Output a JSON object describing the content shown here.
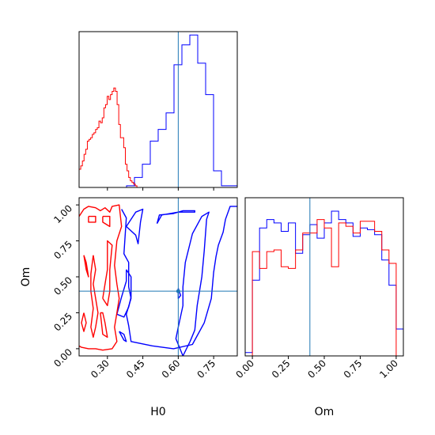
{
  "chart_data": {
    "type": "corner",
    "parameters": [
      "H0",
      "Om"
    ],
    "xlabel": "H0",
    "ylabel": "Om",
    "om_xlabel": "Om",
    "truths": {
      "H0": 0.6,
      "Om": 0.4
    },
    "h0_range": [
      0.18,
      0.85
    ],
    "om_range": [
      -0.05,
      1.05
    ],
    "h0_ticks": [
      "0.30",
      "0.45",
      "0.60",
      "0.75"
    ],
    "om_ticks": [
      "0.00",
      "0.25",
      "0.50",
      "0.75",
      "1.00"
    ],
    "colors": {
      "blue": "#0000ff",
      "red": "#ff0000",
      "truth": "#1f77b4"
    },
    "series": [
      {
        "color": "blue",
        "h0_hist": {
          "edges": [
            0.18,
            0.2135,
            0.247,
            0.2805,
            0.314,
            0.3475,
            0.381,
            0.4145,
            0.448,
            0.4815,
            0.515,
            0.5485,
            0.582,
            0.6155,
            0.649,
            0.6825,
            0.716,
            0.7495,
            0.783,
            0.8165,
            0.85
          ],
          "counts": [
            0,
            0,
            0,
            0,
            0,
            0,
            0.01,
            0.06,
            0.14,
            0.28,
            0.35,
            0.45,
            0.74,
            0.86,
            0.92,
            0.75,
            0.56,
            0.1,
            0.01,
            0.01
          ]
        },
        "om_hist": {
          "edges": [
            -0.05,
            0.0,
            0.05,
            0.1,
            0.15,
            0.2,
            0.25,
            0.3,
            0.35,
            0.4,
            0.45,
            0.5,
            0.55,
            0.6,
            0.65,
            0.7,
            0.75,
            0.8,
            0.85,
            0.9,
            0.95,
            1.0,
            1.05
          ],
          "counts": [
            0.02,
            0.45,
            0.76,
            0.81,
            0.79,
            0.74,
            0.79,
            0.61,
            0.72,
            0.78,
            0.7,
            0.79,
            0.86,
            0.81,
            0.79,
            0.71,
            0.76,
            0.75,
            0.72,
            0.57,
            0.42,
            0.16
          ]
        },
        "contours": [
          [
            [
              0.51,
              0.87
            ],
            [
              0.52,
              0.93
            ],
            [
              0.58,
              0.94
            ],
            [
              0.62,
              0.96
            ],
            [
              0.67,
              0.96
            ],
            [
              0.67,
              0.95
            ],
            [
              0.6,
              0.95
            ],
            [
              0.53,
              0.93
            ],
            [
              0.51,
              0.87
            ]
          ],
          [
            [
              0.36,
              0.97
            ],
            [
              0.38,
              0.91
            ],
            [
              0.37,
              0.66
            ],
            [
              0.39,
              0.6
            ],
            [
              0.39,
              0.43
            ],
            [
              0.4,
              0.35
            ],
            [
              0.38,
              0.24
            ],
            [
              0.39,
              0.16
            ],
            [
              0.4,
              0.05
            ],
            [
              0.49,
              0.02
            ],
            [
              0.58,
              0.0
            ],
            [
              0.66,
              0.03
            ],
            [
              0.68,
              0.09
            ],
            [
              0.71,
              0.18
            ],
            [
              0.74,
              0.35
            ],
            [
              0.75,
              0.53
            ],
            [
              0.76,
              0.64
            ],
            [
              0.77,
              0.72
            ],
            [
              0.79,
              0.81
            ],
            [
              0.8,
              0.9
            ],
            [
              0.82,
              0.99
            ],
            [
              0.85,
              0.99
            ]
          ],
          [
            [
              0.38,
              0.85
            ],
            [
              0.42,
              0.79
            ],
            [
              0.43,
              0.73
            ],
            [
              0.44,
              0.88
            ],
            [
              0.45,
              0.97
            ],
            [
              0.42,
              0.95
            ],
            [
              0.38,
              0.85
            ]
          ],
          [
            [
              0.38,
              0.55
            ],
            [
              0.4,
              0.5
            ],
            [
              0.4,
              0.36
            ],
            [
              0.39,
              0.29
            ],
            [
              0.37,
              0.22
            ],
            [
              0.34,
              0.24
            ],
            [
              0.36,
              0.36
            ],
            [
              0.38,
              0.47
            ],
            [
              0.38,
              0.55
            ]
          ],
          [
            [
              0.35,
              0.12
            ],
            [
              0.37,
              0.06
            ],
            [
              0.38,
              0.05
            ],
            [
              0.37,
              0.1
            ],
            [
              0.35,
              0.12
            ]
          ],
          [
            [
              0.6,
              0.42
            ],
            [
              0.61,
              0.37
            ],
            [
              0.6,
              0.35
            ],
            [
              0.6,
              0.42
            ]
          ],
          [
            [
              0.62,
              -0.05
            ],
            [
              0.65,
              0.05
            ],
            [
              0.67,
              0.13
            ],
            [
              0.68,
              0.3
            ],
            [
              0.7,
              0.5
            ],
            [
              0.71,
              0.68
            ],
            [
              0.72,
              0.9
            ],
            [
              0.73,
              0.95
            ],
            [
              0.7,
              0.92
            ],
            [
              0.66,
              0.8
            ],
            [
              0.63,
              0.6
            ],
            [
              0.62,
              0.43
            ],
            [
              0.62,
              0.3
            ],
            [
              0.6,
              0.15
            ],
            [
              0.59,
              0.07
            ],
            [
              0.62,
              -0.05
            ]
          ]
        ]
      },
      {
        "color": "red",
        "h0_hist": {
          "edges": [
            0.18,
            0.187,
            0.194,
            0.201,
            0.208,
            0.215,
            0.222,
            0.229,
            0.236,
            0.243,
            0.25,
            0.257,
            0.264,
            0.271,
            0.278,
            0.285,
            0.292,
            0.299,
            0.306,
            0.313,
            0.32,
            0.327,
            0.334,
            0.341,
            0.348,
            0.355,
            0.362,
            0.369,
            0.376,
            0.383,
            0.39,
            0.397,
            0.404,
            0.411,
            0.418,
            0.425,
            0.432
          ],
          "counts": [
            0.11,
            0.13,
            0.16,
            0.2,
            0.23,
            0.28,
            0.29,
            0.3,
            0.32,
            0.33,
            0.35,
            0.36,
            0.4,
            0.39,
            0.42,
            0.48,
            0.5,
            0.55,
            0.53,
            0.56,
            0.58,
            0.6,
            0.58,
            0.5,
            0.38,
            0.3,
            0.3,
            0.24,
            0.14,
            0.1,
            0.06,
            0.04,
            0.03,
            0.02,
            0.01,
            0.0
          ]
        },
        "om_hist": {
          "edges": [
            -0.05,
            0.0,
            0.05,
            0.1,
            0.15,
            0.2,
            0.25,
            0.3,
            0.35,
            0.4,
            0.45,
            0.5,
            0.55,
            0.6,
            0.65,
            0.7,
            0.75,
            0.8,
            0.85,
            0.9,
            0.95,
            1.0,
            1.05
          ],
          "counts": [
            0,
            0.62,
            0.52,
            0.62,
            0.63,
            0.53,
            0.52,
            0.63,
            0.73,
            0.73,
            0.81,
            0.76,
            0.53,
            0.79,
            0.77,
            0.73,
            0.8,
            0.8,
            0.74,
            0.63,
            0.55,
            0
          ]
        },
        "contours": [
          [
            [
              0.18,
              0.92
            ],
            [
              0.2,
              0.97
            ],
            [
              0.22,
              0.99
            ],
            [
              0.25,
              0.98
            ],
            [
              0.27,
              0.96
            ],
            [
              0.29,
              0.98
            ],
            [
              0.31,
              0.95
            ],
            [
              0.32,
              0.99
            ],
            [
              0.35,
              1.0
            ],
            [
              0.36,
              0.85
            ],
            [
              0.34,
              0.75
            ],
            [
              0.33,
              0.58
            ],
            [
              0.34,
              0.45
            ],
            [
              0.35,
              0.35
            ],
            [
              0.34,
              0.25
            ],
            [
              0.33,
              0.15
            ],
            [
              0.34,
              0.05
            ],
            [
              0.32,
              0.0
            ],
            [
              0.28,
              -0.01
            ],
            [
              0.25,
              0.0
            ],
            [
              0.22,
              0.0
            ],
            [
              0.19,
              0.01
            ],
            [
              0.18,
              0.02
            ]
          ],
          [
            [
              0.28,
              0.92
            ],
            [
              0.31,
              0.92
            ],
            [
              0.31,
              0.85
            ],
            [
              0.28,
              0.88
            ],
            [
              0.28,
              0.92
            ]
          ],
          [
            [
              0.22,
              0.92
            ],
            [
              0.25,
              0.92
            ],
            [
              0.25,
              0.88
            ],
            [
              0.22,
              0.88
            ],
            [
              0.22,
              0.92
            ]
          ],
          [
            [
              0.28,
              0.35
            ],
            [
              0.29,
              0.45
            ],
            [
              0.3,
              0.55
            ],
            [
              0.3,
              0.75
            ],
            [
              0.32,
              0.72
            ],
            [
              0.31,
              0.55
            ],
            [
              0.31,
              0.4
            ],
            [
              0.3,
              0.3
            ],
            [
              0.28,
              0.35
            ]
          ],
          [
            [
              0.27,
              0.25
            ],
            [
              0.28,
              0.1
            ],
            [
              0.3,
              0.08
            ],
            [
              0.29,
              0.18
            ],
            [
              0.28,
              0.25
            ],
            [
              0.27,
              0.25
            ]
          ],
          [
            [
              0.2,
              0.65
            ],
            [
              0.21,
              0.55
            ],
            [
              0.22,
              0.5
            ],
            [
              0.21,
              0.6
            ],
            [
              0.2,
              0.65
            ]
          ],
          [
            [
              0.24,
              0.65
            ],
            [
              0.25,
              0.55
            ],
            [
              0.24,
              0.45
            ],
            [
              0.25,
              0.35
            ],
            [
              0.26,
              0.25
            ],
            [
              0.25,
              0.15
            ],
            [
              0.24,
              0.08
            ],
            [
              0.23,
              0.15
            ],
            [
              0.24,
              0.28
            ],
            [
              0.23,
              0.4
            ],
            [
              0.23,
              0.52
            ],
            [
              0.24,
              0.65
            ]
          ],
          [
            [
              0.2,
              0.25
            ],
            [
              0.21,
              0.18
            ],
            [
              0.2,
              0.12
            ],
            [
              0.19,
              0.18
            ],
            [
              0.2,
              0.25
            ]
          ],
          [
            [
              0.12,
              0.4
            ],
            [
              0.13,
              0.2
            ],
            [
              0.14,
              0.35
            ],
            [
              0.13,
              0.45
            ],
            [
              0.12,
              0.4
            ]
          ]
        ]
      }
    ]
  }
}
